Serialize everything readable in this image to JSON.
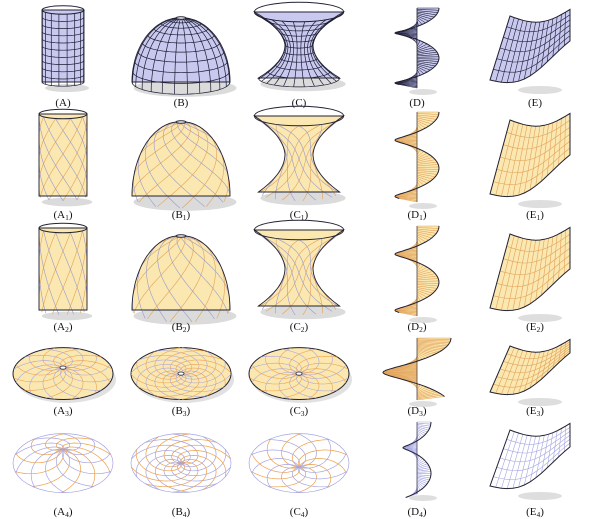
{
  "figure": {
    "colors": {
      "grid_fill": "#c9c9f0",
      "grid_line": "#1c1c33",
      "pattern_fill": "#fbe7b0",
      "pattern_line": "#e2a25a",
      "pattern_edge": "#9a9acf",
      "boundary": "#222233",
      "shadow": "#bdbdbd",
      "wire_blue": "#a5a5e3",
      "wire_orange": "#ef9e46"
    },
    "shapes": [
      "cylinder",
      "dome",
      "hyperboloid",
      "helicoid",
      "twisted-sheet"
    ],
    "rows": [
      {
        "stage": "input-mesh",
        "captions": [
          {
            "letter": "(A",
            "sub": "",
            "close": ")"
          },
          {
            "letter": "(B",
            "sub": "",
            "close": ")"
          },
          {
            "letter": "(C",
            "sub": "",
            "close": ")"
          },
          {
            "letter": "(D",
            "sub": "",
            "close": ")"
          },
          {
            "letter": "(E",
            "sub": "",
            "close": ")"
          }
        ]
      },
      {
        "stage": "pattern-1",
        "captions": [
          {
            "letter": "(A",
            "sub": "1",
            "close": ")"
          },
          {
            "letter": "(B",
            "sub": "1",
            "close": ")"
          },
          {
            "letter": "(C",
            "sub": "1",
            "close": ")"
          },
          {
            "letter": "(D",
            "sub": "1",
            "close": ")"
          },
          {
            "letter": "(E",
            "sub": "1",
            "close": ")"
          }
        ]
      },
      {
        "stage": "pattern-2",
        "captions": [
          {
            "letter": "(A",
            "sub": "2",
            "close": ")"
          },
          {
            "letter": "(B",
            "sub": "2",
            "close": ")"
          },
          {
            "letter": "(C",
            "sub": "2",
            "close": ")"
          },
          {
            "letter": "(D",
            "sub": "2",
            "close": ")"
          },
          {
            "letter": "(E",
            "sub": "2",
            "close": ")"
          }
        ]
      },
      {
        "stage": "pattern-3",
        "captions": [
          {
            "letter": "(A",
            "sub": "3",
            "close": ")"
          },
          {
            "letter": "(B",
            "sub": "3",
            "close": ")"
          },
          {
            "letter": "(C",
            "sub": "3",
            "close": ")"
          },
          {
            "letter": "(D",
            "sub": "3",
            "close": ")"
          },
          {
            "letter": "(E",
            "sub": "3",
            "close": ")"
          }
        ]
      },
      {
        "stage": "wireframe-4",
        "captions": [
          {
            "letter": "(A",
            "sub": "4",
            "close": ")"
          },
          {
            "letter": "(B",
            "sub": "4",
            "close": ")"
          },
          {
            "letter": "(C",
            "sub": "4",
            "close": ")"
          },
          {
            "letter": "(D",
            "sub": "4",
            "close": ")"
          },
          {
            "letter": "(E",
            "sub": "4",
            "close": ")"
          }
        ]
      }
    ]
  }
}
